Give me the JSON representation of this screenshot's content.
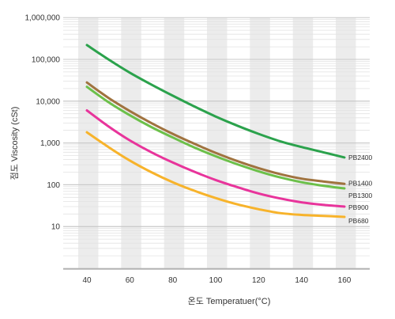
{
  "chart_data": {
    "type": "line",
    "xlabel": "온도 Temperatuer(°C)",
    "ylabel": "점도 Viscosity (cSt)",
    "y_scale": "log",
    "xlim": [
      40,
      160
    ],
    "ylim": [
      1,
      1000000
    ],
    "x_ticks": [
      40,
      60,
      80,
      100,
      120,
      140,
      160
    ],
    "y_ticks": [
      {
        "value": 10,
        "label": "10"
      },
      {
        "value": 100,
        "label": "100"
      },
      {
        "value": 1000,
        "label": "1,000"
      },
      {
        "value": 10000,
        "label": "10,000"
      },
      {
        "value": 100000,
        "label": "100,000"
      },
      {
        "value": 1000000,
        "label": "1,000,000"
      }
    ],
    "grid": true,
    "legend": "inline labels at right end of each line",
    "background_bands": "alternating vertical gray bands",
    "x": [
      40,
      50,
      60,
      70,
      80,
      90,
      100,
      110,
      120,
      130,
      140,
      150,
      160
    ],
    "series": [
      {
        "name": "PB2400",
        "color": "#2ba24c",
        "values": [
          220000,
          100000,
          48000,
          25000,
          13500,
          7500,
          4300,
          2600,
          1650,
          1100,
          800,
          600,
          450
        ]
      },
      {
        "name": "PB1400",
        "color": "#a0733f",
        "values": [
          28000,
          12000,
          5800,
          3000,
          1650,
          960,
          580,
          370,
          250,
          180,
          140,
          120,
          105
        ]
      },
      {
        "name": "PB1300",
        "color": "#6cc04a",
        "values": [
          22000,
          9500,
          4600,
          2400,
          1350,
          780,
          480,
          310,
          210,
          150,
          115,
          95,
          82
        ]
      },
      {
        "name": "PB900",
        "color": "#e8349b",
        "values": [
          6000,
          2500,
          1150,
          600,
          340,
          205,
          130,
          88,
          62,
          47,
          38,
          33,
          30
        ]
      },
      {
        "name": "PB680",
        "color": "#f7b32b",
        "values": [
          1800,
          800,
          380,
          200,
          115,
          72,
          48,
          34,
          26,
          21,
          19,
          18,
          17
        ]
      }
    ]
  }
}
